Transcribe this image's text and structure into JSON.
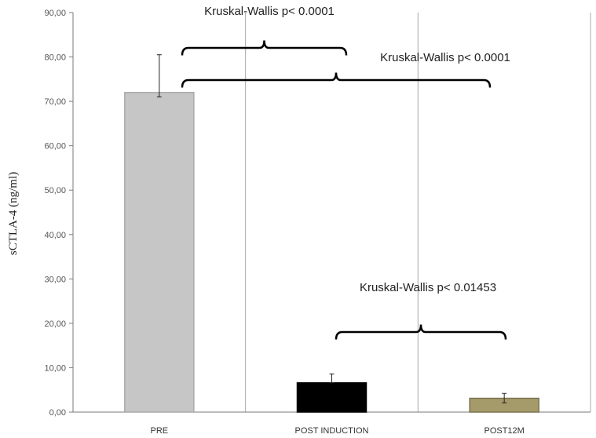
{
  "chart_data": {
    "type": "bar",
    "title": "",
    "xlabel": "",
    "ylabel": "sCTLA-4 (ng/ml)",
    "ylim": [
      0,
      90
    ],
    "yticks": [
      0,
      10,
      20,
      30,
      40,
      50,
      60,
      70,
      80,
      90
    ],
    "ytick_labels": [
      "0,00",
      "10,00",
      "20,00",
      "30,00",
      "40,00",
      "50,00",
      "60,00",
      "70,00",
      "80,00",
      "90,00"
    ],
    "categories": [
      "PRE",
      "POST INDUCTION",
      "POST12M"
    ],
    "values": [
      72.0,
      6.6,
      3.1
    ],
    "error_upper": [
      80.5,
      8.6,
      4.2
    ],
    "error_lower": [
      71.0,
      6.6,
      2.1
    ],
    "bar_colors": [
      "#c6c6c6",
      "#000000",
      "#a59a6a"
    ],
    "grid": "vertical separators between categories",
    "annotations": [
      {
        "text": "Kruskal-Wallis p< 0.0001",
        "from": "PRE",
        "to": "POST INDUCTION"
      },
      {
        "text": "Kruskal-Wallis p< 0.0001",
        "from": "PRE",
        "to": "POST12M"
      },
      {
        "text": "Kruskal-Wallis p< 0.01453",
        "from": "POST INDUCTION",
        "to": "POST12M"
      }
    ]
  }
}
